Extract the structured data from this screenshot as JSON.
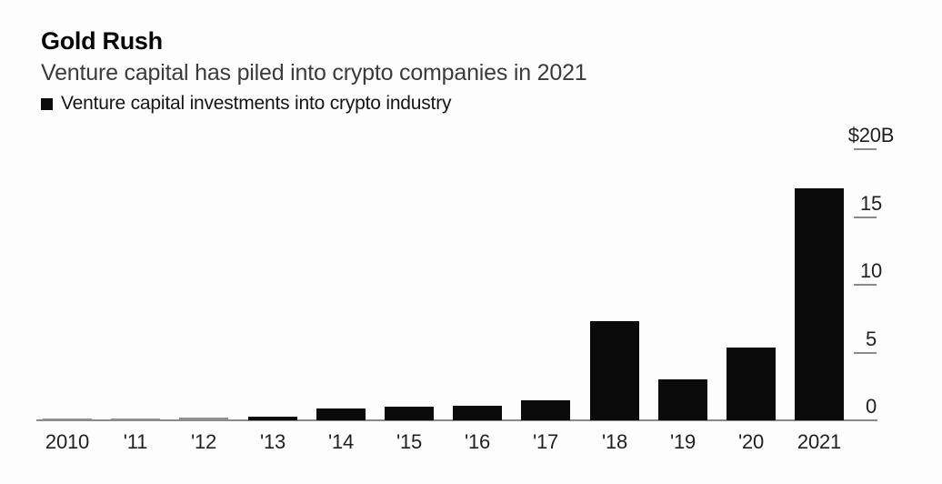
{
  "header": {
    "title": "Gold Rush",
    "subtitle": "Venture capital has piled into crypto companies in 2021"
  },
  "legend": {
    "label": "Venture capital investments into crypto industry",
    "swatch_color": "#0b0b0b"
  },
  "chart_data": {
    "type": "bar",
    "title": "Gold Rush",
    "subtitle": "Venture capital has piled into crypto companies in 2021",
    "series_name": "Venture capital investments into crypto industry",
    "unit": "billions of US dollars",
    "categories": [
      "2010",
      "'11",
      "'12",
      "'13",
      "'14",
      "'15",
      "'16",
      "'17",
      "'18",
      "'19",
      "'20",
      "2021"
    ],
    "values": [
      0.05,
      0.05,
      0.2,
      0.3,
      0.9,
      1.0,
      1.1,
      1.5,
      7.3,
      3.0,
      5.4,
      17.1
    ],
    "xlabel": "",
    "ylabel": "$B",
    "ylim": [
      0,
      20
    ],
    "y_ticks": [
      {
        "label": "$20B",
        "value": 20
      },
      {
        "label": "15",
        "value": 15
      },
      {
        "label": "10",
        "value": 10
      },
      {
        "label": "5",
        "value": 5
      },
      {
        "label": "0",
        "value": 0
      }
    ],
    "tick_side": "right",
    "grid": false,
    "legend_position": "top-left",
    "bar_color": "#0b0b0b",
    "near_zero_bar_color": "#909090",
    "axis_color": "#8a8a8a"
  }
}
